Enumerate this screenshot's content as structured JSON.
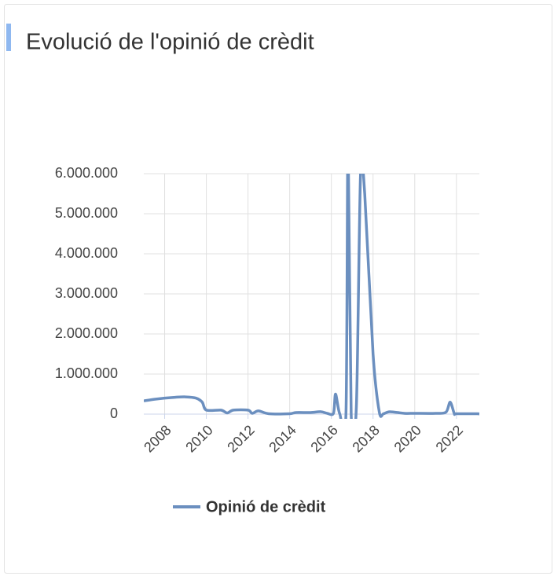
{
  "chart_data": {
    "type": "line",
    "title": "Evolució de l'opinió de crèdit",
    "x": [
      2007,
      2007.5,
      2008,
      2008.5,
      2009,
      2009.5,
      2009.8,
      2010,
      2010.7,
      2011,
      2011.3,
      2012,
      2012.2,
      2012.5,
      2013,
      2014,
      2014.3,
      2015,
      2015.5,
      2015.8,
      2016.1,
      2016.2,
      2016.4,
      2016.7,
      2016.8,
      2016.95,
      2017.2,
      2017.4,
      2017.6,
      2018,
      2018.3,
      2018.5,
      2018.8,
      2019.5,
      2020,
      2021,
      2021.5,
      2021.7,
      2021.9,
      2022,
      2023,
      2023.1
    ],
    "series": [
      {
        "name": "Opinió de crèdit",
        "color": "#6b8fbf",
        "values": [
          330000,
          370000,
          400000,
          420000,
          430000,
          400000,
          300000,
          100000,
          100000,
          30000,
          100000,
          100000,
          20000,
          80000,
          10000,
          10000,
          40000,
          40000,
          60000,
          20000,
          20000,
          500000,
          10000,
          10000,
          7000000,
          0,
          200000,
          6000000,
          5500000,
          1500000,
          50000,
          10000,
          60000,
          20000,
          20000,
          20000,
          50000,
          300000,
          10000,
          10000,
          10000,
          0
        ]
      }
    ],
    "xlim": [
      2007,
      2023.1
    ],
    "xticks": [
      2008,
      2010,
      2012,
      2014,
      2016,
      2018,
      2020,
      2022
    ],
    "ylim": [
      0,
      6000000
    ],
    "yticks": [
      0,
      {
        "value": 1000000,
        "label": "1.000.000"
      },
      {
        "value": 2000000,
        "label": "2.000.000"
      },
      {
        "value": 3000000,
        "label": "3.000.000"
      },
      {
        "value": 4000000,
        "label": "4.000.000"
      },
      {
        "value": 5000000,
        "label": "5.000.000"
      },
      {
        "value": 6000000,
        "label": "6.000.000"
      }
    ],
    "grid": true,
    "legend": "bottom"
  }
}
